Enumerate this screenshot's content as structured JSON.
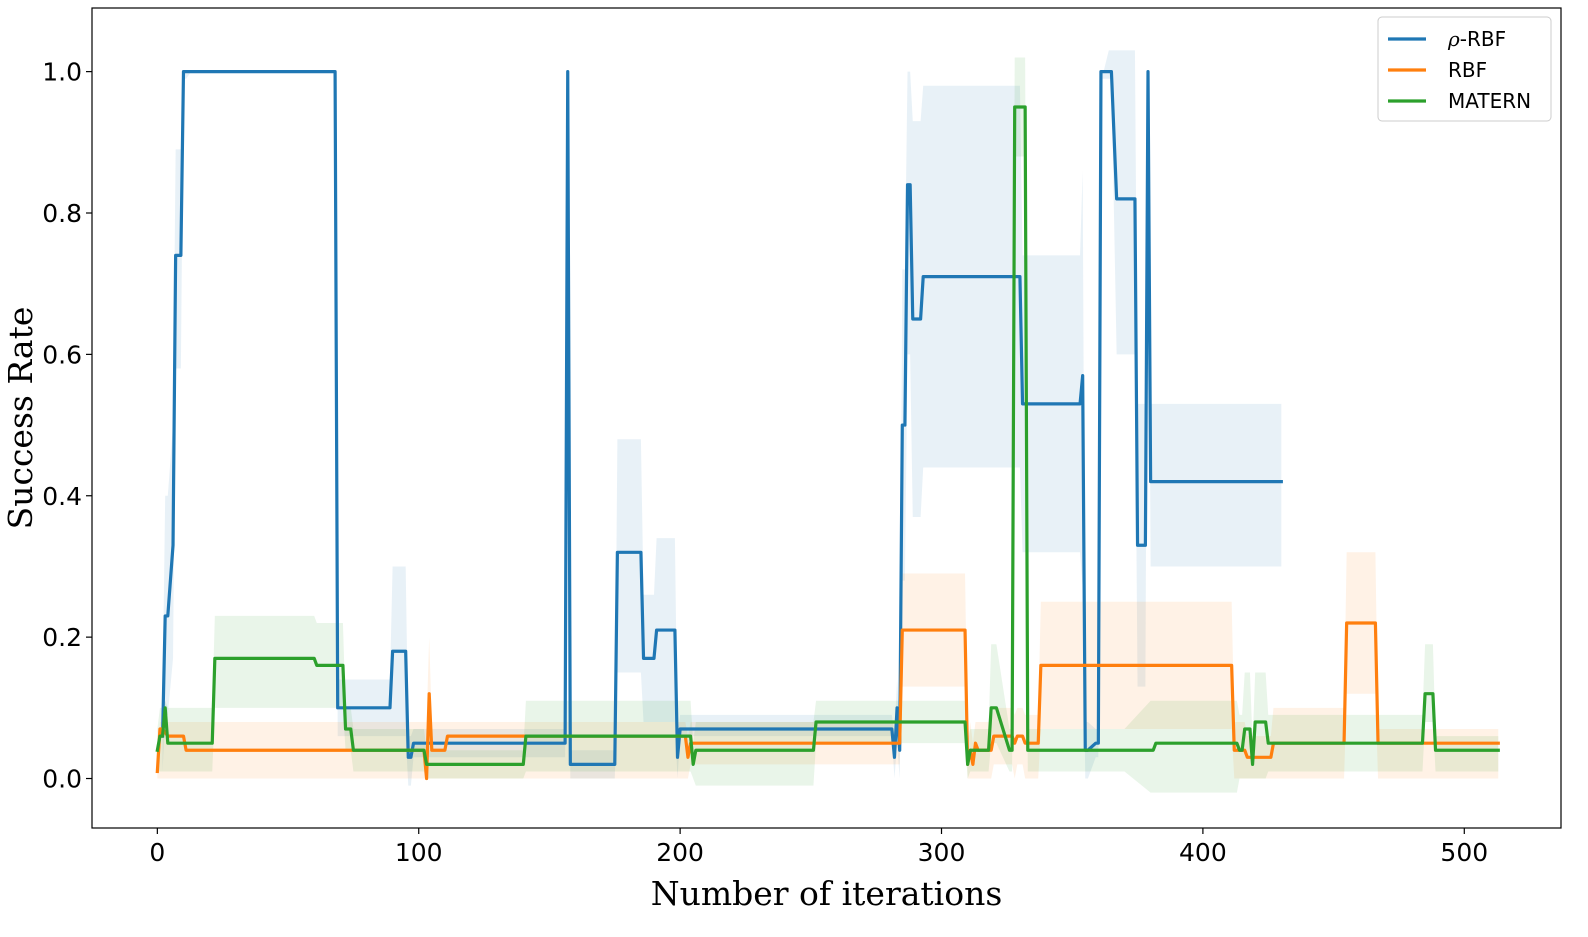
{
  "chart_data": {
    "type": "line",
    "title": "",
    "xlabel": "Number of iterations",
    "ylabel": "Success Rate",
    "xlim": [
      -25,
      537
    ],
    "ylim": [
      -0.07,
      1.09
    ],
    "xticks": [
      0,
      100,
      200,
      300,
      400,
      500
    ],
    "xtick_labels": [
      "0",
      "100",
      "200",
      "300",
      "400",
      "500"
    ],
    "yticks": [
      0.0,
      0.2,
      0.4,
      0.6,
      0.8,
      1.0
    ],
    "ytick_labels": [
      "0.0",
      "0.2",
      "0.4",
      "0.6",
      "0.8",
      "1.0"
    ],
    "grid": false,
    "legend_placement": "top-right",
    "series": [
      {
        "name": "ρ-RBF",
        "legend_prefix": "ρ",
        "legend_suffix": "-RBF",
        "color": "#1f77b4",
        "band_color": "#1f77b4",
        "x": [
          2,
          3,
          4,
          6,
          7,
          9,
          10,
          11,
          13,
          68,
          69,
          70,
          89,
          90,
          95,
          96,
          97,
          98,
          101,
          156,
          157,
          158,
          175,
          176,
          185,
          186,
          190,
          191,
          198,
          199,
          200,
          201,
          281,
          282,
          283,
          284,
          285,
          286,
          287,
          288,
          289,
          290,
          292,
          293,
          330,
          331,
          332,
          353,
          354,
          355,
          356,
          359,
          360,
          361,
          362,
          364,
          365,
          367,
          368,
          374,
          375,
          376,
          378,
          379,
          380,
          381,
          382,
          430
        ],
        "y": [
          0.06,
          0.23,
          0.23,
          0.33,
          0.74,
          0.74,
          1.0,
          1.0,
          1.0,
          1.0,
          0.1,
          0.1,
          0.1,
          0.18,
          0.18,
          0.03,
          0.03,
          0.05,
          0.05,
          0.05,
          1.0,
          0.02,
          0.02,
          0.32,
          0.32,
          0.17,
          0.17,
          0.21,
          0.21,
          0.03,
          0.07,
          0.07,
          0.07,
          0.03,
          0.1,
          0.04,
          0.5,
          0.5,
          0.84,
          0.84,
          0.65,
          0.65,
          0.65,
          0.71,
          0.71,
          0.53,
          0.53,
          0.53,
          0.57,
          0.04,
          0.04,
          0.05,
          0.05,
          1.0,
          1.0,
          1.0,
          1.0,
          0.82,
          0.82,
          0.82,
          0.33,
          0.33,
          0.33,
          1.0,
          0.42,
          0.42,
          0.42,
          0.42
        ],
        "lower": [
          0.01,
          0.09,
          0.09,
          0.17,
          0.58,
          0.58,
          0.99,
          0.99,
          1.0,
          1.0,
          0.06,
          0.06,
          0.06,
          0.06,
          0.06,
          -0.01,
          -0.01,
          0.03,
          0.03,
          0.03,
          0.99,
          0.0,
          0.0,
          0.15,
          0.15,
          0.08,
          0.08,
          0.08,
          0.08,
          0.0,
          0.06,
          0.06,
          0.06,
          0.0,
          0.05,
          0.0,
          0.28,
          0.28,
          0.6,
          0.6,
          0.37,
          0.37,
          0.37,
          0.44,
          0.44,
          0.32,
          0.32,
          0.32,
          0.27,
          0.0,
          0.0,
          0.03,
          0.03,
          0.99,
          0.99,
          0.99,
          0.99,
          0.6,
          0.6,
          0.6,
          0.13,
          0.13,
          0.13,
          0.99,
          0.3,
          0.3,
          0.3,
          0.3
        ],
        "upper": [
          0.12,
          0.4,
          0.4,
          0.5,
          0.89,
          0.89,
          1.0,
          1.0,
          1.0,
          1.0,
          0.14,
          0.14,
          0.14,
          0.3,
          0.3,
          0.06,
          0.06,
          0.07,
          0.07,
          0.07,
          1.0,
          0.04,
          0.04,
          0.48,
          0.48,
          0.26,
          0.26,
          0.34,
          0.34,
          0.06,
          0.09,
          0.09,
          0.09,
          0.06,
          0.14,
          0.08,
          0.72,
          0.72,
          1.0,
          1.0,
          0.93,
          0.93,
          0.93,
          0.98,
          0.98,
          0.74,
          0.74,
          0.74,
          0.86,
          0.08,
          0.08,
          0.07,
          0.07,
          1.0,
          1.0,
          1.03,
          1.03,
          1.03,
          1.03,
          1.03,
          0.53,
          0.53,
          0.53,
          1.0,
          0.53,
          0.53,
          0.53,
          0.53
        ]
      },
      {
        "name": "RBF",
        "color": "#ff7f0e",
        "band_color": "#ff7f0e",
        "x": [
          0,
          1,
          2,
          4,
          5,
          9,
          10,
          11,
          12,
          100,
          101,
          102,
          103,
          104,
          105,
          106,
          107,
          110,
          111,
          140,
          200,
          201,
          202,
          203,
          204,
          205,
          206,
          281,
          282,
          283,
          284,
          285,
          286,
          287,
          308,
          309,
          310,
          311,
          312,
          313,
          314,
          318,
          319,
          320,
          321,
          325,
          326,
          327,
          328,
          329,
          330,
          331,
          332,
          337,
          338,
          339,
          410,
          411,
          412,
          413,
          414,
          415,
          416,
          417,
          420,
          421,
          425,
          426,
          427,
          434,
          435,
          450,
          451,
          452,
          453,
          454,
          455,
          456,
          465,
          466,
          467,
          468,
          513
        ],
        "y": [
          0.01,
          0.07,
          0.07,
          0.06,
          0.06,
          0.06,
          0.06,
          0.04,
          0.04,
          0.04,
          0.04,
          0.04,
          0.0,
          0.12,
          0.04,
          0.04,
          0.04,
          0.04,
          0.06,
          0.06,
          0.06,
          0.06,
          0.06,
          0.03,
          0.05,
          0.05,
          0.05,
          0.05,
          0.05,
          0.05,
          0.05,
          0.21,
          0.21,
          0.21,
          0.21,
          0.21,
          0.02,
          0.04,
          0.02,
          0.05,
          0.04,
          0.04,
          0.04,
          0.06,
          0.06,
          0.06,
          0.06,
          0.06,
          0.05,
          0.06,
          0.06,
          0.06,
          0.05,
          0.05,
          0.16,
          0.16,
          0.16,
          0.16,
          0.04,
          0.04,
          0.04,
          0.04,
          0.04,
          0.03,
          0.03,
          0.03,
          0.03,
          0.03,
          0.05,
          0.05,
          0.05,
          0.05,
          0.05,
          0.05,
          0.05,
          0.05,
          0.22,
          0.22,
          0.22,
          0.22,
          0.05,
          0.05,
          0.05
        ],
        "lower": [
          0.0,
          0.0,
          0.0,
          0.0,
          0.0,
          0.0,
          0.0,
          0.0,
          0.0,
          0.0,
          0.0,
          0.0,
          0.0,
          0.0,
          0.0,
          0.0,
          0.0,
          0.0,
          0.0,
          0.0,
          0.0,
          0.0,
          0.0,
          0.0,
          0.02,
          0.02,
          0.02,
          0.02,
          0.02,
          0.02,
          0.02,
          0.13,
          0.13,
          0.13,
          0.13,
          0.13,
          0.0,
          0.0,
          0.0,
          0.0,
          0.0,
          0.0,
          0.0,
          0.02,
          0.02,
          0.02,
          0.02,
          0.02,
          0.0,
          0.02,
          0.02,
          0.02,
          0.0,
          0.0,
          0.07,
          0.07,
          0.07,
          0.07,
          0.0,
          0.0,
          0.0,
          0.0,
          0.0,
          0.0,
          0.0,
          0.0,
          0.0,
          0.0,
          0.0,
          0.0,
          0.0,
          0.0,
          0.0,
          0.0,
          0.0,
          0.0,
          0.12,
          0.12,
          0.12,
          0.12,
          0.0,
          0.0,
          0.0
        ],
        "upper": [
          0.02,
          0.08,
          0.08,
          0.08,
          0.08,
          0.08,
          0.08,
          0.08,
          0.08,
          0.08,
          0.08,
          0.08,
          0.08,
          0.2,
          0.08,
          0.08,
          0.08,
          0.08,
          0.08,
          0.08,
          0.08,
          0.08,
          0.08,
          0.06,
          0.08,
          0.08,
          0.08,
          0.08,
          0.08,
          0.08,
          0.08,
          0.29,
          0.29,
          0.29,
          0.29,
          0.29,
          0.05,
          0.08,
          0.05,
          0.08,
          0.08,
          0.08,
          0.08,
          0.1,
          0.1,
          0.1,
          0.1,
          0.1,
          0.09,
          0.1,
          0.1,
          0.1,
          0.09,
          0.09,
          0.25,
          0.25,
          0.25,
          0.25,
          0.08,
          0.08,
          0.08,
          0.08,
          0.08,
          0.06,
          0.06,
          0.06,
          0.06,
          0.06,
          0.1,
          0.1,
          0.1,
          0.1,
          0.1,
          0.1,
          0.1,
          0.1,
          0.32,
          0.32,
          0.32,
          0.32,
          0.07,
          0.07,
          0.07
        ]
      },
      {
        "name": "MATERN",
        "color": "#2ca02c",
        "band_color": "#2ca02c",
        "x": [
          0,
          1,
          2,
          3,
          4,
          5,
          10,
          11,
          21,
          22,
          60,
          61,
          71,
          72,
          73,
          74,
          75,
          102,
          103,
          140,
          141,
          200,
          201,
          202,
          203,
          204,
          205,
          206,
          210,
          211,
          250,
          251,
          252,
          253,
          283,
          284,
          308,
          309,
          310,
          311,
          315,
          316,
          318,
          319,
          320,
          321,
          326,
          327,
          328,
          329,
          330,
          331,
          332,
          333,
          333.1,
          345,
          355,
          360,
          370,
          380,
          381,
          382,
          383,
          385,
          387,
          410,
          411,
          412,
          413,
          414,
          415,
          416,
          417,
          418,
          419,
          420,
          421,
          422,
          424,
          425,
          432,
          433,
          434,
          475,
          476,
          480,
          484,
          485,
          488,
          489,
          490,
          513
        ],
        "y": [
          0.04,
          0.06,
          0.06,
          0.1,
          0.05,
          0.05,
          0.05,
          0.05,
          0.05,
          0.17,
          0.17,
          0.16,
          0.16,
          0.07,
          0.07,
          0.07,
          0.04,
          0.04,
          0.02,
          0.02,
          0.06,
          0.06,
          0.06,
          0.06,
          0.06,
          0.06,
          0.02,
          0.04,
          0.04,
          0.04,
          0.04,
          0.04,
          0.08,
          0.08,
          0.08,
          0.08,
          0.08,
          0.08,
          0.02,
          0.04,
          0.04,
          0.04,
          0.04,
          0.1,
          0.1,
          0.1,
          0.04,
          0.04,
          0.95,
          0.95,
          0.95,
          0.95,
          0.95,
          0.04,
          0.04,
          0.04,
          0.04,
          0.04,
          0.04,
          0.04,
          0.04,
          0.05,
          0.05,
          0.05,
          0.05,
          0.05,
          0.05,
          0.05,
          0.05,
          0.04,
          0.04,
          0.07,
          0.07,
          0.07,
          0.02,
          0.08,
          0.08,
          0.08,
          0.08,
          0.05,
          0.05,
          0.05,
          0.05,
          0.05,
          0.05,
          0.05,
          0.05,
          0.12,
          0.12,
          0.04,
          0.04,
          0.04
        ],
        "lower": [
          0.01,
          0.01,
          0.01,
          0.01,
          0.01,
          0.01,
          0.01,
          0.01,
          0.01,
          0.1,
          0.1,
          0.1,
          0.1,
          0.04,
          0.04,
          0.04,
          0.01,
          0.01,
          0.0,
          0.0,
          0.01,
          0.01,
          0.01,
          0.01,
          0.01,
          0.01,
          0.0,
          -0.01,
          -0.01,
          -0.01,
          -0.01,
          -0.01,
          0.05,
          0.05,
          0.05,
          0.05,
          0.05,
          0.05,
          0.0,
          0.01,
          0.01,
          0.01,
          0.01,
          0.05,
          0.05,
          0.05,
          0.01,
          0.01,
          0.88,
          0.88,
          0.88,
          0.88,
          0.88,
          0.01,
          0.01,
          0.01,
          0.01,
          0.01,
          0.01,
          -0.02,
          -0.02,
          -0.02,
          -0.02,
          -0.02,
          -0.02,
          -0.02,
          -0.02,
          -0.02,
          -0.02,
          0.0,
          0.0,
          0.0,
          0.0,
          0.0,
          0.0,
          0.0,
          0.0,
          0.0,
          0.0,
          0.01,
          0.01,
          0.01,
          0.01,
          0.01,
          0.01,
          0.01,
          0.01,
          0.08,
          0.08,
          0.01,
          0.01,
          0.01
        ],
        "upper": [
          0.07,
          0.1,
          0.1,
          0.11,
          0.1,
          0.1,
          0.1,
          0.1,
          0.1,
          0.23,
          0.23,
          0.22,
          0.22,
          0.1,
          0.1,
          0.1,
          0.07,
          0.07,
          0.04,
          0.04,
          0.11,
          0.11,
          0.11,
          0.11,
          0.11,
          0.11,
          0.05,
          0.08,
          0.08,
          0.08,
          0.08,
          0.08,
          0.11,
          0.11,
          0.11,
          0.11,
          0.11,
          0.11,
          0.05,
          0.07,
          0.07,
          0.07,
          0.07,
          0.19,
          0.19,
          0.19,
          0.07,
          0.07,
          1.02,
          1.02,
          1.02,
          1.02,
          1.02,
          0.07,
          0.07,
          0.07,
          0.07,
          0.07,
          0.07,
          0.11,
          0.11,
          0.11,
          0.11,
          0.11,
          0.11,
          0.11,
          0.11,
          0.11,
          0.11,
          0.09,
          0.09,
          0.15,
          0.15,
          0.15,
          0.05,
          0.15,
          0.15,
          0.15,
          0.15,
          0.09,
          0.09,
          0.09,
          0.09,
          0.09,
          0.09,
          0.09,
          0.09,
          0.19,
          0.19,
          0.06,
          0.06,
          0.06
        ]
      }
    ]
  }
}
